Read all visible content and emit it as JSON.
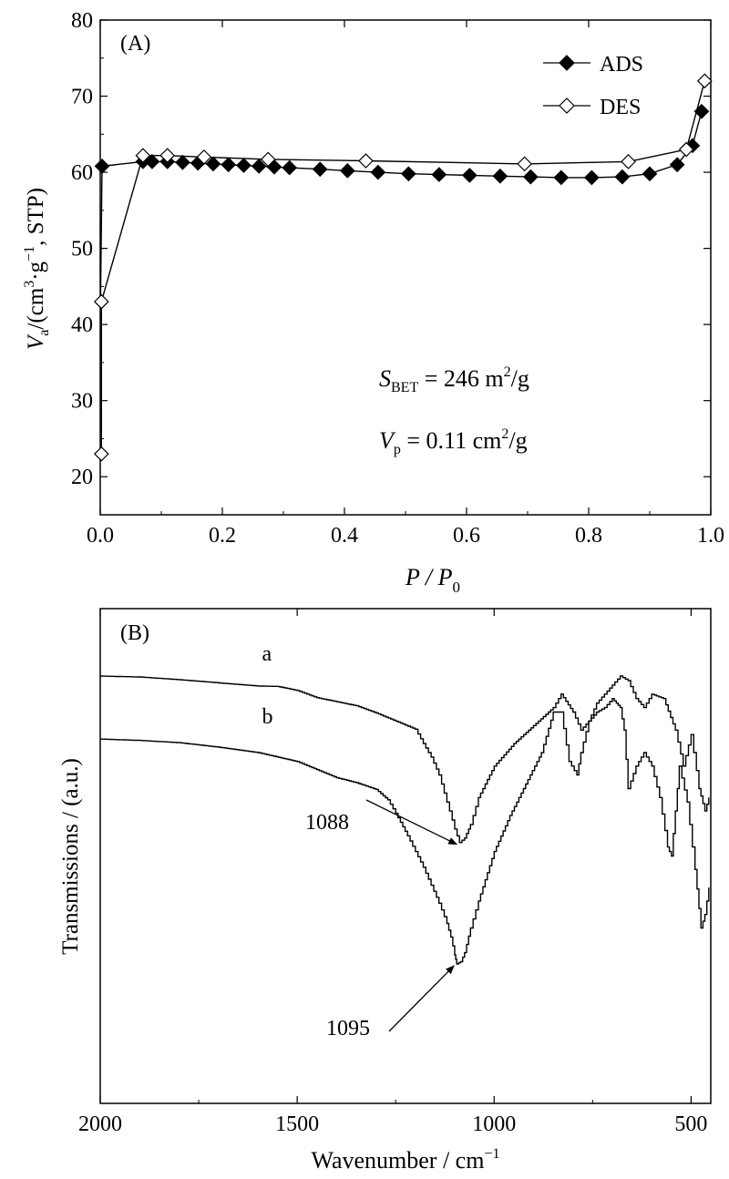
{
  "chart_data": [
    {
      "type": "line",
      "panel_label": "(A)",
      "xlim": [
        0.0,
        1.0
      ],
      "ylim": [
        15,
        80
      ],
      "x_ticks": [
        "0.0",
        "0.2",
        "0.4",
        "0.6",
        "0.8",
        "1.0"
      ],
      "y_ticks": [
        "20",
        "30",
        "40",
        "50",
        "60",
        "70",
        "80"
      ],
      "xlabel": {
        "main": "P / P",
        "sub": "0"
      },
      "ylabel": {
        "main": "V",
        "sub": "a",
        "rest": "/(cm",
        "sup1": "3",
        "mid": "·g",
        "sup2": "−1",
        "end": ", STP)"
      },
      "legend_position": "top-right",
      "series": [
        {
          "name": "ADS",
          "marker": "filled-diamond",
          "x": [
            0.003,
            0.07,
            0.085,
            0.11,
            0.135,
            0.16,
            0.185,
            0.21,
            0.235,
            0.26,
            0.285,
            0.31,
            0.36,
            0.405,
            0.455,
            0.505,
            0.555,
            0.605,
            0.655,
            0.705,
            0.755,
            0.805,
            0.855,
            0.9,
            0.945,
            0.97,
            0.985
          ],
          "y": [
            60.8,
            61.4,
            61.4,
            61.4,
            61.3,
            61.2,
            61.1,
            61.0,
            60.9,
            60.8,
            60.7,
            60.6,
            60.4,
            60.2,
            60.0,
            59.8,
            59.7,
            59.6,
            59.5,
            59.4,
            59.3,
            59.3,
            59.4,
            59.8,
            61.0,
            63.5,
            68.0
          ]
        },
        {
          "name": "DES",
          "marker": "open-diamond",
          "x": [
            0.002,
            0.002,
            0.07,
            0.11,
            0.17,
            0.275,
            0.435,
            0.695,
            0.865,
            0.96,
            0.99
          ],
          "y": [
            23.0,
            43.0,
            62.2,
            62.2,
            62.0,
            61.7,
            61.5,
            61.1,
            61.4,
            63.0,
            72.0
          ]
        }
      ],
      "annotations": [
        {
          "main": "S",
          "sub": "BET",
          "rest": " = 246 m",
          "sup": "2",
          "end": "/g"
        },
        {
          "main": "V",
          "sub": "p",
          "rest": " = 0.11  cm",
          "sup": "2",
          "end": "/g"
        }
      ]
    },
    {
      "type": "line",
      "panel_label": "(B)",
      "x_reversed": true,
      "xlim": [
        2000,
        450
      ],
      "x_ticks": [
        "2000",
        "1500",
        "1000",
        "500"
      ],
      "xlabel": {
        "main": "Wavenumber / cm",
        "sup": "−1"
      },
      "ylabel": "Transmissions / (a.u.)",
      "series": [
        {
          "name": "a",
          "x": [
            2000,
            1900,
            1800,
            1700,
            1600,
            1550,
            1500,
            1450,
            1400,
            1350,
            1300,
            1250,
            1200,
            1180,
            1160,
            1140,
            1120,
            1100,
            1088,
            1075,
            1060,
            1040,
            1000,
            950,
            900,
            850,
            830,
            800,
            780,
            760,
            740,
            720,
            700,
            680,
            660,
            640,
            620,
            600,
            570,
            540,
            520,
            500,
            480,
            465,
            455
          ],
          "y": [
            95,
            94.8,
            94.2,
            93.5,
            92.8,
            92.7,
            91.8,
            90.2,
            89.3,
            88.4,
            86.8,
            85.0,
            83.2,
            80.0,
            77.0,
            73.0,
            67.0,
            61.0,
            58.0,
            59.0,
            62.0,
            68.0,
            75.0,
            80.0,
            84.0,
            88.0,
            91.0,
            87.0,
            83.0,
            85.0,
            89.0,
            91.0,
            93.0,
            95.0,
            94.0,
            90.0,
            88.0,
            91.0,
            90.0,
            83.0,
            75.0,
            82.0,
            70.0,
            65.0,
            68.0
          ]
        },
        {
          "name": "b",
          "x": [
            2000,
            1900,
            1800,
            1700,
            1600,
            1500,
            1450,
            1400,
            1350,
            1300,
            1270,
            1250,
            1220,
            1200,
            1180,
            1160,
            1140,
            1120,
            1110,
            1100,
            1095,
            1085,
            1075,
            1060,
            1040,
            1000,
            960,
            920,
            880,
            850,
            830,
            810,
            790,
            780,
            760,
            740,
            720,
            700,
            690,
            680,
            670,
            660,
            640,
            620,
            600,
            580,
            560,
            550,
            540,
            530,
            510,
            490,
            475,
            465,
            455
          ],
          "y": [
            81,
            80.7,
            80.2,
            79.2,
            78.0,
            76.0,
            74.2,
            72.4,
            71.3,
            69.8,
            67.5,
            64.5,
            59.5,
            56.0,
            52.5,
            48.5,
            44.5,
            40.0,
            37.0,
            33.0,
            31.0,
            31.5,
            33.5,
            39.0,
            45.0,
            56.0,
            64.0,
            71.0,
            78.0,
            87.0,
            87.0,
            76.0,
            73.0,
            78.0,
            85.0,
            87.0,
            88.0,
            90.0,
            89.0,
            88.0,
            83.0,
            70.0,
            75.0,
            78.0,
            75.0,
            68.0,
            57.0,
            55.0,
            65.0,
            75.0,
            67.0,
            52.0,
            39.0,
            42.0,
            48.0
          ]
        }
      ],
      "curve_labels": [
        {
          "text": "a",
          "x": 1580,
          "y": 98.5
        },
        {
          "text": "b",
          "x": 1580,
          "y": 84.5
        }
      ],
      "annotations": [
        {
          "text": "1088",
          "points_to_x": 1088,
          "points_to_y": 58.0
        },
        {
          "text": "1095",
          "points_to_x": 1095,
          "points_to_y": 31.0
        }
      ]
    }
  ]
}
